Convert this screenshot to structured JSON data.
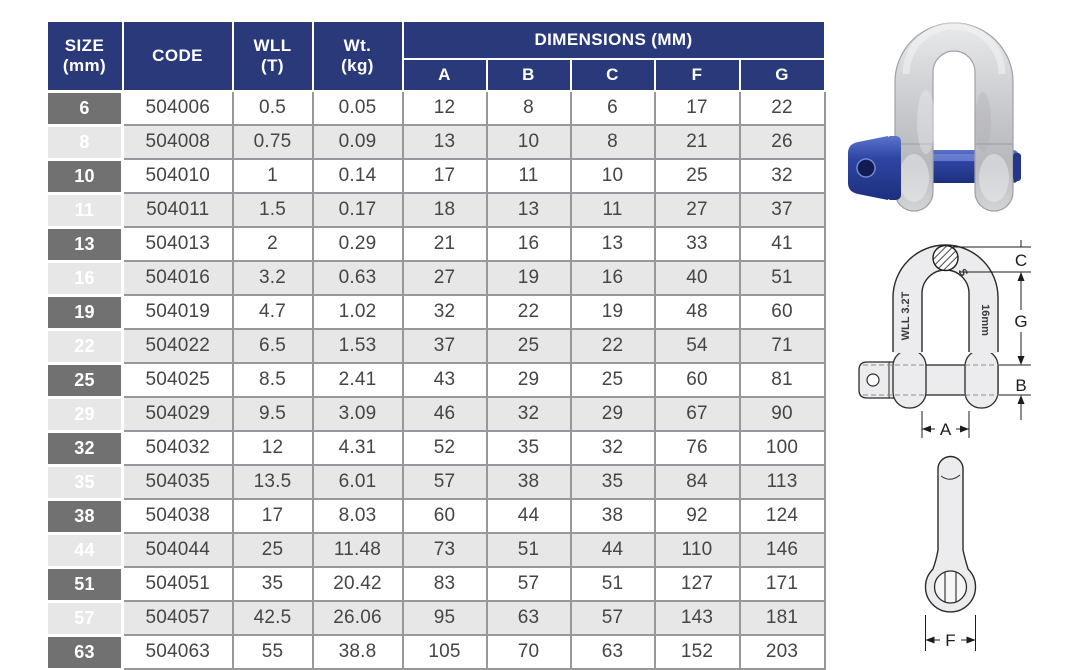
{
  "colors": {
    "header_navy": "#29397a",
    "size_column_gray": "#717171",
    "alt_row_gray": "#e7e7e8",
    "grid_border_gray": "#97979c",
    "body_text": "#454545",
    "pin_blue": "#2e45a3",
    "pin_blue_dark": "#1d2f7d",
    "metal_light": "#e9eaec",
    "metal_mid": "#c3c4c8",
    "drawing_fill": "#ececee",
    "drawing_stroke": "#2b2b2b"
  },
  "table": {
    "col_headers": {
      "size": "SIZE\n(mm)",
      "code": "CODE",
      "wll": "WLL\n(T)",
      "wt": "Wt.\n(kg)",
      "dimensions_group": "DIMENSIONS (MM)",
      "dimension_cols": [
        "A",
        "B",
        "C",
        "F",
        "G"
      ]
    },
    "rows": [
      {
        "size": "6",
        "code": "504006",
        "wll": "0.5",
        "wt": "0.05",
        "dims": [
          "12",
          "8",
          "6",
          "17",
          "22"
        ]
      },
      {
        "size": "8",
        "code": "504008",
        "wll": "0.75",
        "wt": "0.09",
        "dims": [
          "13",
          "10",
          "8",
          "21",
          "26"
        ]
      },
      {
        "size": "10",
        "code": "504010",
        "wll": "1",
        "wt": "0.14",
        "dims": [
          "17",
          "11",
          "10",
          "25",
          "32"
        ]
      },
      {
        "size": "11",
        "code": "504011",
        "wll": "1.5",
        "wt": "0.17",
        "dims": [
          "18",
          "13",
          "11",
          "27",
          "37"
        ]
      },
      {
        "size": "13",
        "code": "504013",
        "wll": "2",
        "wt": "0.29",
        "dims": [
          "21",
          "16",
          "13",
          "33",
          "41"
        ]
      },
      {
        "size": "16",
        "code": "504016",
        "wll": "3.2",
        "wt": "0.63",
        "dims": [
          "27",
          "19",
          "16",
          "40",
          "51"
        ]
      },
      {
        "size": "19",
        "code": "504019",
        "wll": "4.7",
        "wt": "1.02",
        "dims": [
          "32",
          "22",
          "19",
          "48",
          "60"
        ]
      },
      {
        "size": "22",
        "code": "504022",
        "wll": "6.5",
        "wt": "1.53",
        "dims": [
          "37",
          "25",
          "22",
          "54",
          "71"
        ]
      },
      {
        "size": "25",
        "code": "504025",
        "wll": "8.5",
        "wt": "2.41",
        "dims": [
          "43",
          "29",
          "25",
          "60",
          "81"
        ]
      },
      {
        "size": "29",
        "code": "504029",
        "wll": "9.5",
        "wt": "3.09",
        "dims": [
          "46",
          "32",
          "29",
          "67",
          "90"
        ]
      },
      {
        "size": "32",
        "code": "504032",
        "wll": "12",
        "wt": "4.31",
        "dims": [
          "52",
          "35",
          "32",
          "76",
          "100"
        ]
      },
      {
        "size": "35",
        "code": "504035",
        "wll": "13.5",
        "wt": "6.01",
        "dims": [
          "57",
          "38",
          "35",
          "84",
          "113"
        ]
      },
      {
        "size": "38",
        "code": "504038",
        "wll": "17",
        "wt": "8.03",
        "dims": [
          "60",
          "44",
          "38",
          "92",
          "124"
        ]
      },
      {
        "size": "44",
        "code": "504044",
        "wll": "25",
        "wt": "11.48",
        "dims": [
          "73",
          "51",
          "44",
          "110",
          "146"
        ]
      },
      {
        "size": "51",
        "code": "504051",
        "wll": "35",
        "wt": "20.42",
        "dims": [
          "83",
          "57",
          "51",
          "127",
          "171"
        ]
      },
      {
        "size": "57",
        "code": "504057",
        "wll": "42.5",
        "wt": "26.06",
        "dims": [
          "95",
          "63",
          "57",
          "143",
          "181"
        ]
      },
      {
        "size": "63",
        "code": "504063",
        "wll": "55",
        "wt": "38.8",
        "dims": [
          "105",
          "70",
          "63",
          "152",
          "203"
        ]
      }
    ]
  },
  "figures": {
    "front_view_labels": {
      "c": "C",
      "g": "G",
      "b": "B",
      "a": "A",
      "wll_marking": "WLL 3.2T",
      "size_marking": "16mm",
      "grade_marking": "S"
    },
    "pin_view_labels": {
      "f": "F"
    }
  }
}
